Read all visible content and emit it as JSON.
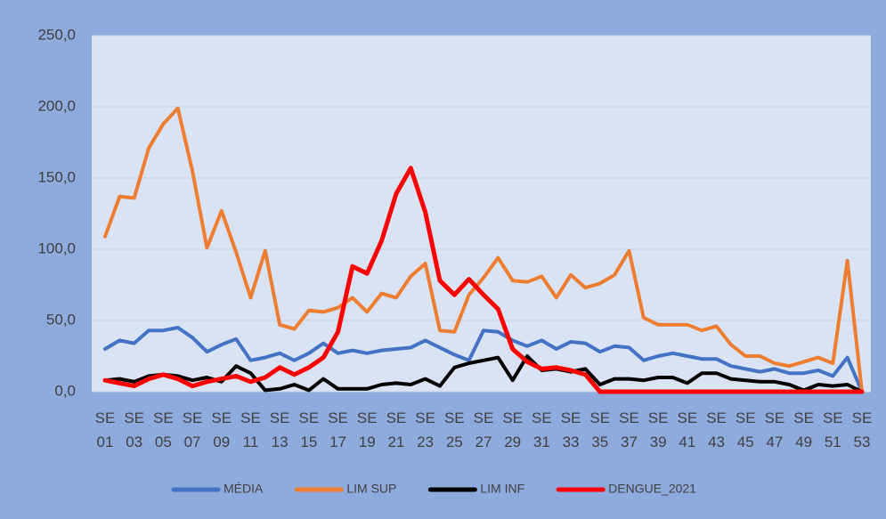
{
  "chart_data": {
    "type": "line",
    "categories": [
      "SE 01",
      null,
      "SE 03",
      null,
      "SE 05",
      null,
      "SE 07",
      null,
      "SE 09",
      null,
      "SE 11",
      null,
      "SE 13",
      null,
      "SE 15",
      null,
      "SE 17",
      null,
      "SE 19",
      null,
      "SE 21",
      null,
      "SE 23",
      null,
      "SE 25",
      null,
      "SE 27",
      null,
      "SE 29",
      null,
      "SE 31",
      null,
      "SE 33",
      null,
      "SE 35",
      null,
      "SE 37",
      null,
      "SE 39",
      null,
      "SE 41",
      null,
      "SE 43",
      null,
      "SE 45",
      null,
      "SE 47",
      null,
      "SE 49",
      null,
      "SE 51",
      null,
      "SE 53"
    ],
    "series": [
      {
        "name": "MÉDIA",
        "color": "#4472c4",
        "values": [
          30,
          36,
          34,
          43,
          43,
          45,
          38,
          28,
          33,
          37,
          22,
          24,
          27,
          22,
          27,
          34,
          27,
          29,
          27,
          29,
          30,
          31,
          36,
          31,
          26,
          22,
          43,
          42,
          36,
          32,
          36,
          30,
          35,
          34,
          28,
          32,
          31,
          22,
          25,
          27,
          25,
          23,
          23,
          18,
          16,
          14,
          16,
          13,
          13,
          15,
          11,
          24,
          0
        ]
      },
      {
        "name": "LIM SUP",
        "color": "#ed7d31",
        "values": [
          109,
          137,
          136,
          171,
          188,
          199,
          155,
          101,
          127,
          98,
          66,
          99,
          47,
          44,
          57,
          56,
          59,
          66,
          56,
          69,
          66,
          81,
          90,
          43,
          42,
          68,
          80,
          94,
          78,
          77,
          81,
          66,
          82,
          73,
          76,
          82,
          99,
          52,
          47,
          47,
          47,
          43,
          46,
          33,
          25,
          25,
          20,
          18,
          21,
          24,
          20,
          92,
          0
        ]
      },
      {
        "name": "LIM INF",
        "color": "#000000",
        "values": [
          8,
          9,
          7,
          11,
          12,
          11,
          8,
          10,
          7,
          18,
          13,
          1,
          2,
          5,
          1,
          9,
          2,
          2,
          2,
          5,
          6,
          5,
          9,
          4,
          17,
          20,
          22,
          24,
          8,
          25,
          15,
          16,
          14,
          16,
          5,
          9,
          9,
          8,
          10,
          10,
          6,
          13,
          13,
          9,
          8,
          7,
          7,
          5,
          1,
          5,
          4,
          5,
          0
        ]
      },
      {
        "name": "DENGUE_2021",
        "color": "#ff0000",
        "values": [
          8,
          6,
          4,
          9,
          12,
          9,
          4,
          7,
          9,
          11,
          7,
          10,
          17,
          12,
          17,
          24,
          42,
          88,
          83,
          106,
          139,
          157,
          126,
          78,
          68,
          79,
          68,
          58,
          30,
          21,
          16,
          17,
          15,
          12,
          0,
          0,
          0,
          0,
          0,
          0,
          0,
          0,
          0,
          0,
          0,
          0,
          0,
          0,
          0,
          0,
          0,
          0,
          0
        ]
      }
    ],
    "ylim": [
      0,
      250
    ],
    "yticks": [
      {
        "value": 0,
        "label": "0,0"
      },
      {
        "value": 50,
        "label": "50,0"
      },
      {
        "value": 100,
        "label": "100,0"
      },
      {
        "value": 150,
        "label": "150,0"
      },
      {
        "value": 200,
        "label": "200,0"
      },
      {
        "value": 250,
        "label": "250,0"
      }
    ],
    "grid": true,
    "legend": "bottom"
  }
}
